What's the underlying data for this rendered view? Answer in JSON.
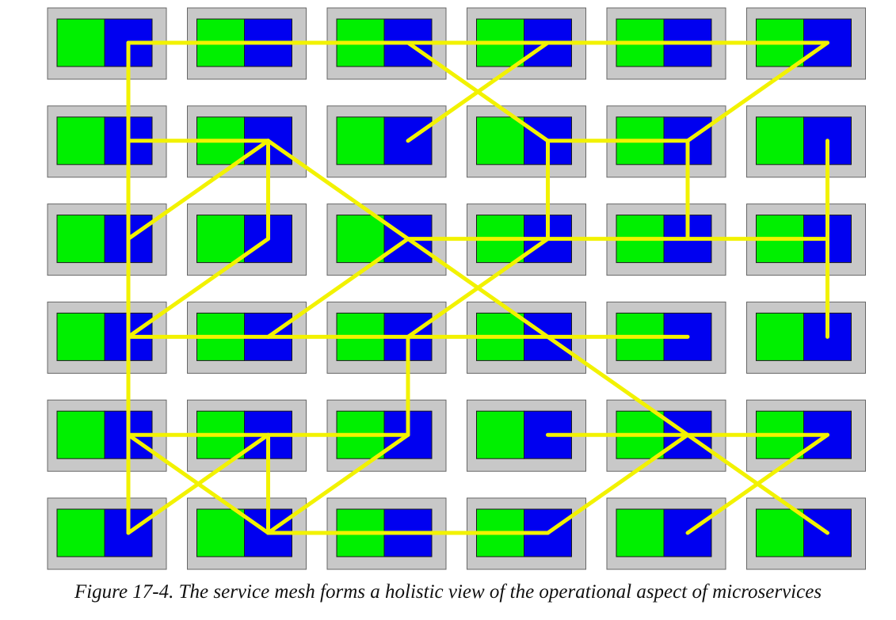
{
  "figure": {
    "caption": "Figure 17-4. The service mesh forms a holistic view of the operational aspect of microservices"
  },
  "colors": {
    "pod": "#c8c8c8",
    "pod_border": "#666666",
    "service": "#00f000",
    "sidecar": "#0000f0",
    "mesh_link": "#f2f200"
  },
  "grid": {
    "rows": 6,
    "columns": 6
  },
  "links": [
    [
      [
        0,
        0
      ],
      [
        0,
        1
      ]
    ],
    [
      [
        0,
        1
      ],
      [
        0,
        2
      ]
    ],
    [
      [
        0,
        2
      ],
      [
        0,
        3
      ]
    ],
    [
      [
        0,
        3
      ],
      [
        0,
        4
      ]
    ],
    [
      [
        0,
        4
      ],
      [
        0,
        5
      ]
    ],
    [
      [
        0,
        0
      ],
      [
        1,
        0
      ]
    ],
    [
      [
        0,
        2
      ],
      [
        1,
        3
      ]
    ],
    [
      [
        0,
        3
      ],
      [
        1,
        2
      ]
    ],
    [
      [
        0,
        5
      ],
      [
        1,
        4
      ]
    ],
    [
      [
        1,
        0
      ],
      [
        1,
        1
      ]
    ],
    [
      [
        1,
        3
      ],
      [
        1,
        4
      ]
    ],
    [
      [
        1,
        0
      ],
      [
        2,
        0
      ]
    ],
    [
      [
        1,
        1
      ],
      [
        2,
        0
      ]
    ],
    [
      [
        1,
        1
      ],
      [
        2,
        1
      ]
    ],
    [
      [
        1,
        1
      ],
      [
        2,
        2
      ]
    ],
    [
      [
        1,
        3
      ],
      [
        2,
        3
      ]
    ],
    [
      [
        1,
        4
      ],
      [
        2,
        4
      ]
    ],
    [
      [
        1,
        5
      ],
      [
        2,
        5
      ]
    ],
    [
      [
        2,
        2
      ],
      [
        2,
        3
      ]
    ],
    [
      [
        2,
        3
      ],
      [
        2,
        4
      ]
    ],
    [
      [
        2,
        4
      ],
      [
        2,
        5
      ]
    ],
    [
      [
        2,
        0
      ],
      [
        3,
        0
      ]
    ],
    [
      [
        2,
        1
      ],
      [
        3,
        0
      ]
    ],
    [
      [
        2,
        2
      ],
      [
        3,
        1
      ]
    ],
    [
      [
        2,
        3
      ],
      [
        3,
        2
      ]
    ],
    [
      [
        2,
        2
      ],
      [
        3,
        3
      ]
    ],
    [
      [
        2,
        5
      ],
      [
        3,
        5
      ]
    ],
    [
      [
        3,
        0
      ],
      [
        3,
        1
      ]
    ],
    [
      [
        3,
        1
      ],
      [
        3,
        2
      ]
    ],
    [
      [
        3,
        2
      ],
      [
        3,
        3
      ]
    ],
    [
      [
        3,
        3
      ],
      [
        3,
        4
      ]
    ],
    [
      [
        3,
        0
      ],
      [
        4,
        0
      ]
    ],
    [
      [
        3,
        2
      ],
      [
        4,
        2
      ]
    ],
    [
      [
        3,
        3
      ],
      [
        4,
        4
      ]
    ],
    [
      [
        4,
        0
      ],
      [
        4,
        1
      ]
    ],
    [
      [
        4,
        1
      ],
      [
        4,
        2
      ]
    ],
    [
      [
        4,
        3
      ],
      [
        4,
        4
      ]
    ],
    [
      [
        4,
        4
      ],
      [
        4,
        5
      ]
    ],
    [
      [
        4,
        0
      ],
      [
        5,
        0
      ]
    ],
    [
      [
        4,
        1
      ],
      [
        5,
        0
      ]
    ],
    [
      [
        4,
        0
      ],
      [
        5,
        1
      ]
    ],
    [
      [
        4,
        1
      ],
      [
        5,
        1
      ]
    ],
    [
      [
        4,
        2
      ],
      [
        5,
        1
      ]
    ],
    [
      [
        4,
        4
      ],
      [
        5,
        3
      ]
    ],
    [
      [
        4,
        5
      ],
      [
        5,
        4
      ]
    ],
    [
      [
        4,
        4
      ],
      [
        5,
        5
      ]
    ],
    [
      [
        5,
        1
      ],
      [
        5,
        2
      ]
    ],
    [
      [
        5,
        2
      ],
      [
        5,
        3
      ]
    ]
  ]
}
